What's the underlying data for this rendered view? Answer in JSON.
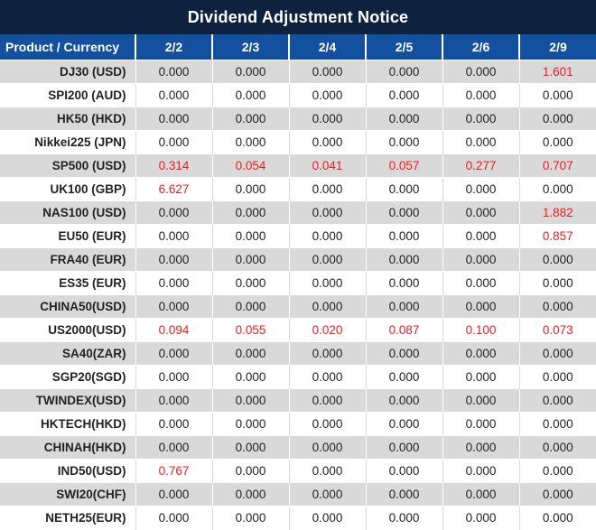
{
  "title": "Dividend Adjustment Notice",
  "table": {
    "product_header": "Product / Currency",
    "date_headers": [
      "2/2",
      "2/3",
      "2/4",
      "2/5",
      "2/6",
      "2/9"
    ],
    "rows": [
      {
        "product": "DJ30 (USD)",
        "values": [
          "0.000",
          "0.000",
          "0.000",
          "0.000",
          "0.000",
          "1.601"
        ]
      },
      {
        "product": "SPI200 (AUD)",
        "values": [
          "0.000",
          "0.000",
          "0.000",
          "0.000",
          "0.000",
          "0.000"
        ]
      },
      {
        "product": "HK50 (HKD)",
        "values": [
          "0.000",
          "0.000",
          "0.000",
          "0.000",
          "0.000",
          "0.000"
        ]
      },
      {
        "product": "Nikkei225 (JPN)",
        "values": [
          "0.000",
          "0.000",
          "0.000",
          "0.000",
          "0.000",
          "0.000"
        ]
      },
      {
        "product": "SP500 (USD)",
        "values": [
          "0.314",
          "0.054",
          "0.041",
          "0.057",
          "0.277",
          "0.707"
        ]
      },
      {
        "product": "UK100 (GBP)",
        "values": [
          "6.627",
          "0.000",
          "0.000",
          "0.000",
          "0.000",
          "0.000"
        ]
      },
      {
        "product": "NAS100 (USD)",
        "values": [
          "0.000",
          "0.000",
          "0.000",
          "0.000",
          "0.000",
          "1.882"
        ]
      },
      {
        "product": "EU50 (EUR)",
        "values": [
          "0.000",
          "0.000",
          "0.000",
          "0.000",
          "0.000",
          "0.857"
        ]
      },
      {
        "product": "FRA40 (EUR)",
        "values": [
          "0.000",
          "0.000",
          "0.000",
          "0.000",
          "0.000",
          "0.000"
        ]
      },
      {
        "product": "ES35 (EUR)",
        "values": [
          "0.000",
          "0.000",
          "0.000",
          "0.000",
          "0.000",
          "0.000"
        ]
      },
      {
        "product": "CHINA50(USD)",
        "values": [
          "0.000",
          "0.000",
          "0.000",
          "0.000",
          "0.000",
          "0.000"
        ]
      },
      {
        "product": "US2000(USD)",
        "values": [
          "0.094",
          "0.055",
          "0.020",
          "0.087",
          "0.100",
          "0.073"
        ]
      },
      {
        "product": "SA40(ZAR)",
        "values": [
          "0.000",
          "0.000",
          "0.000",
          "0.000",
          "0.000",
          "0.000"
        ]
      },
      {
        "product": "SGP20(SGD)",
        "values": [
          "0.000",
          "0.000",
          "0.000",
          "0.000",
          "0.000",
          "0.000"
        ]
      },
      {
        "product": "TWINDEX(USD)",
        "values": [
          "0.000",
          "0.000",
          "0.000",
          "0.000",
          "0.000",
          "0.000"
        ]
      },
      {
        "product": "HKTECH(HKD)",
        "values": [
          "0.000",
          "0.000",
          "0.000",
          "0.000",
          "0.000",
          "0.000"
        ]
      },
      {
        "product": "CHINAH(HKD)",
        "values": [
          "0.000",
          "0.000",
          "0.000",
          "0.000",
          "0.000",
          "0.000"
        ]
      },
      {
        "product": "IND50(USD)",
        "values": [
          "0.767",
          "0.000",
          "0.000",
          "0.000",
          "0.000",
          "0.000"
        ]
      },
      {
        "product": "SWI20(CHF)",
        "values": [
          "0.000",
          "0.000",
          "0.000",
          "0.000",
          "0.000",
          "0.000"
        ]
      },
      {
        "product": "NETH25(EUR)",
        "values": [
          "0.000",
          "0.000",
          "0.000",
          "0.000",
          "0.000",
          "0.000"
        ]
      }
    ]
  },
  "colors": {
    "title_bg": "#0e2240",
    "header_bg": "#1450a0",
    "header_text": "#ffffff",
    "row_alt_bg": "#d9d9d9",
    "row_bg": "#ffffff",
    "value_red": "#ee1c1c",
    "text_dark": "#222222"
  }
}
